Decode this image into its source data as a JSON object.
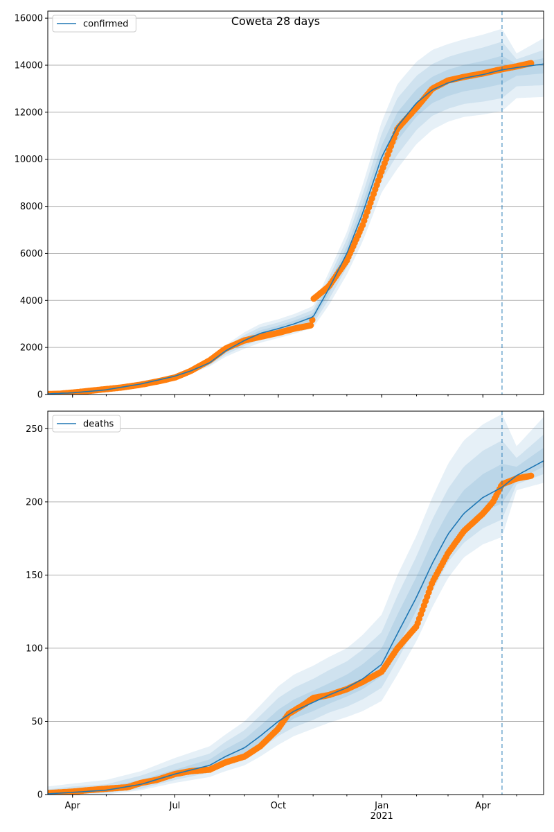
{
  "colors": {
    "model": "#1f77b4",
    "observed": "#ff7f0e",
    "band": "#1f77b4",
    "grid": "#b0b0b0",
    "vline": "#1f77b4"
  },
  "chart_data": [
    {
      "type": "line",
      "title": "Coweta 28 days",
      "legend": "confirmed",
      "legend_position": "top-left",
      "grid": "horizontal",
      "x_type": "date",
      "xlim": [
        "2020-03-10",
        "2021-05-25"
      ],
      "ylim": [
        0,
        16300
      ],
      "yticks": [
        0,
        2000,
        4000,
        6000,
        8000,
        10000,
        12000,
        14000,
        16000
      ],
      "xticks": [
        {
          "date": "2020-04-01",
          "label": ""
        },
        {
          "date": "2020-07-01",
          "label": ""
        },
        {
          "date": "2020-10-01",
          "label": ""
        },
        {
          "date": "2021-01-01",
          "label": ""
        },
        {
          "date": "2021-04-01",
          "label": ""
        }
      ],
      "forecast_start": "2021-04-18",
      "model": {
        "x": [
          "2020-03-10",
          "2020-04-01",
          "2020-05-01",
          "2020-06-01",
          "2020-07-01",
          "2020-07-15",
          "2020-08-01",
          "2020-08-15",
          "2020-09-01",
          "2020-09-15",
          "2020-10-01",
          "2020-10-15",
          "2020-11-01",
          "2020-11-15",
          "2020-12-01",
          "2020-12-15",
          "2021-01-01",
          "2021-01-15",
          "2021-02-01",
          "2021-02-15",
          "2021-03-01",
          "2021-03-15",
          "2021-04-01",
          "2021-04-18",
          "2021-05-01",
          "2021-05-25"
        ],
        "y": [
          30,
          70,
          200,
          450,
          780,
          1000,
          1350,
          1850,
          2300,
          2600,
          2800,
          3000,
          3300,
          4500,
          6000,
          7700,
          10100,
          11400,
          12400,
          12950,
          13250,
          13450,
          13600,
          13800,
          13900,
          14050
        ]
      },
      "bands": [
        {
          "level": "outer",
          "dlow": [
            0,
            10,
            25,
            45,
            70,
            110,
            160,
            250,
            350,
            400,
            400,
            420,
            460,
            700,
            900,
            1200,
            1500,
            1800,
            1750,
            1700,
            1650,
            1650,
            1700,
            1750,
            1300,
            1400
          ],
          "dhigh": [
            0,
            10,
            25,
            45,
            70,
            110,
            160,
            250,
            350,
            400,
            400,
            420,
            460,
            700,
            900,
            1200,
            1500,
            1800,
            1750,
            1700,
            1650,
            1650,
            1700,
            1750,
            600,
            1100
          ]
        },
        {
          "level": "mid",
          "dlow": [
            0,
            6,
            16,
            30,
            45,
            70,
            100,
            160,
            230,
            260,
            260,
            280,
            300,
            460,
            600,
            800,
            1000,
            1200,
            1150,
            1100,
            1100,
            1100,
            1150,
            1200,
            800,
            900
          ],
          "dhigh": [
            0,
            6,
            16,
            30,
            45,
            70,
            100,
            160,
            230,
            260,
            260,
            280,
            300,
            460,
            600,
            800,
            1000,
            1200,
            1150,
            1100,
            1100,
            1100,
            1150,
            1200,
            350,
            600
          ]
        },
        {
          "level": "inner",
          "dlow": [
            0,
            3,
            8,
            15,
            22,
            35,
            50,
            80,
            110,
            130,
            130,
            140,
            150,
            230,
            300,
            400,
            500,
            600,
            580,
            560,
            560,
            560,
            580,
            600,
            350,
            400
          ],
          "dhigh": [
            0,
            3,
            8,
            15,
            22,
            35,
            50,
            80,
            110,
            130,
            130,
            140,
            150,
            230,
            300,
            400,
            500,
            600,
            580,
            560,
            560,
            560,
            580,
            600,
            150,
            250
          ]
        }
      ],
      "observed": {
        "x": [
          "2020-03-10",
          "2020-03-20",
          "2020-04-01",
          "2020-04-15",
          "2020-05-01",
          "2020-05-15",
          "2020-06-01",
          "2020-06-15",
          "2020-07-01",
          "2020-07-15",
          "2020-08-01",
          "2020-08-15",
          "2020-09-01",
          "2020-09-15",
          "2020-10-01",
          "2020-10-15",
          "2020-10-31",
          "2020-11-01",
          "2020-11-15",
          "2020-12-01",
          "2020-12-15",
          "2021-01-01",
          "2021-01-15",
          "2021-02-01",
          "2021-02-15",
          "2021-03-01",
          "2021-03-15",
          "2021-04-01",
          "2021-04-15",
          "2021-05-01",
          "2021-05-15"
        ],
        "y": [
          20,
          30,
          80,
          150,
          230,
          300,
          420,
          550,
          720,
          1000,
          1450,
          1950,
          2300,
          2450,
          2620,
          2800,
          2950,
          4050,
          4600,
          5700,
          7200,
          9500,
          11300,
          12200,
          13000,
          13350,
          13500,
          13650,
          13800,
          13950,
          14100
        ]
      }
    },
    {
      "type": "line",
      "title": "",
      "legend": "deaths",
      "legend_position": "top-left",
      "grid": "horizontal",
      "x_type": "date",
      "xlim": [
        "2020-03-10",
        "2021-05-25"
      ],
      "ylim": [
        0,
        262
      ],
      "yticks": [
        0,
        50,
        100,
        150,
        200,
        250
      ],
      "xticks": [
        {
          "date": "2020-04-01",
          "label": "Apr"
        },
        {
          "date": "2020-07-01",
          "label": "Jul"
        },
        {
          "date": "2020-10-01",
          "label": "Oct"
        },
        {
          "date": "2021-01-01",
          "label": "Jan\n2021"
        },
        {
          "date": "2021-04-01",
          "label": "Apr"
        }
      ],
      "forecast_start": "2021-04-18",
      "model": {
        "x": [
          "2020-03-10",
          "2020-04-01",
          "2020-05-01",
          "2020-06-01",
          "2020-07-01",
          "2020-08-01",
          "2020-08-15",
          "2020-09-01",
          "2020-09-15",
          "2020-10-01",
          "2020-10-15",
          "2020-11-01",
          "2020-11-15",
          "2020-12-01",
          "2020-12-15",
          "2021-01-01",
          "2021-01-15",
          "2021-02-01",
          "2021-02-15",
          "2021-03-01",
          "2021-03-15",
          "2021-04-01",
          "2021-04-18",
          "2021-05-01",
          "2021-05-25"
        ],
        "y": [
          0.5,
          1.5,
          3,
          7,
          14,
          20,
          26,
          32,
          40,
          50,
          57,
          63,
          68,
          73,
          79,
          89,
          110,
          135,
          158,
          178,
          192,
          203,
          210,
          218,
          228
        ]
      },
      "bands": [
        {
          "level": "outer",
          "dlow": [
            1,
            2,
            3,
            4,
            6,
            8,
            10,
            12,
            14,
            16,
            17,
            18,
            19,
            20,
            22,
            25,
            28,
            30,
            30,
            30,
            30,
            32,
            34,
            10,
            15
          ],
          "dhigh": [
            5,
            6,
            7,
            9,
            11,
            13,
            15,
            18,
            21,
            24,
            25,
            25,
            26,
            27,
            30,
            34,
            40,
            42,
            45,
            48,
            50,
            50,
            50,
            20,
            30
          ]
        },
        {
          "level": "mid",
          "dlow": [
            0.5,
            1,
            2,
            3,
            4,
            5,
            6,
            8,
            9,
            10,
            11,
            12,
            12,
            13,
            14,
            16,
            18,
            19,
            19,
            19,
            20,
            21,
            22,
            6,
            9
          ],
          "dhigh": [
            3,
            4,
            4,
            6,
            7,
            8,
            10,
            12,
            14,
            16,
            16,
            16,
            17,
            18,
            20,
            22,
            26,
            28,
            30,
            31,
            32,
            32,
            32,
            12,
            18
          ]
        },
        {
          "level": "inner",
          "dlow": [
            0.3,
            0.5,
            1,
            1.5,
            2,
            3,
            3,
            4,
            4,
            5,
            5,
            6,
            6,
            6,
            7,
            8,
            9,
            9,
            9,
            9,
            10,
            10,
            11,
            3,
            4
          ],
          "dhigh": [
            1.5,
            2,
            2,
            3,
            3,
            4,
            5,
            6,
            7,
            8,
            8,
            8,
            8,
            9,
            10,
            11,
            13,
            14,
            15,
            15,
            16,
            16,
            16,
            6,
            9
          ]
        }
      ],
      "observed": {
        "x": [
          "2020-03-10",
          "2020-04-01",
          "2020-04-15",
          "2020-05-01",
          "2020-05-20",
          "2020-06-01",
          "2020-06-15",
          "2020-07-01",
          "2020-07-15",
          "2020-08-01",
          "2020-08-15",
          "2020-09-01",
          "2020-09-15",
          "2020-10-01",
          "2020-10-10",
          "2020-10-25",
          "2020-11-01",
          "2020-11-15",
          "2020-12-01",
          "2020-12-15",
          "2021-01-01",
          "2021-01-15",
          "2021-02-01",
          "2021-02-15",
          "2021-03-01",
          "2021-03-15",
          "2021-04-01",
          "2021-04-10",
          "2021-04-18",
          "2021-05-01",
          "2021-05-15"
        ],
        "y": [
          1,
          2,
          3,
          4,
          5,
          8,
          10,
          14,
          16,
          17,
          22,
          26,
          33,
          45,
          55,
          62,
          66,
          68,
          72,
          77,
          84,
          100,
          115,
          145,
          165,
          180,
          192,
          200,
          212,
          216,
          218
        ]
      }
    }
  ]
}
